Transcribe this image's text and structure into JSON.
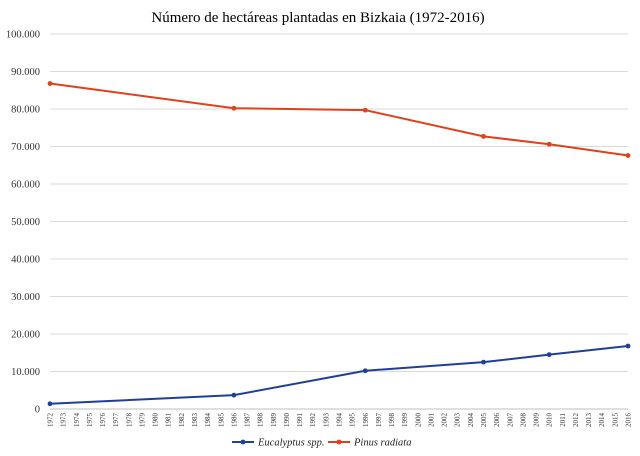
{
  "chart_data": {
    "type": "line",
    "title": "Número de hectáreas plantadas en Bizkaia (1972-2016)",
    "xlabel": "",
    "ylabel": "",
    "ylim": [
      0,
      100000
    ],
    "yticks": [
      0,
      10000,
      20000,
      30000,
      40000,
      50000,
      60000,
      70000,
      80000,
      90000,
      100000
    ],
    "ytick_labels": [
      "0",
      "10.000",
      "20.000",
      "30.000",
      "40.000",
      "50.000",
      "60.000",
      "70.000",
      "80.000",
      "90.000",
      "100.000"
    ],
    "categories": [
      "1972",
      "1973",
      "1974",
      "1975",
      "1976",
      "1977",
      "1978",
      "1979",
      "1980",
      "1981",
      "1982",
      "1983",
      "1984",
      "1985",
      "1986",
      "1987",
      "1988",
      "1989",
      "1990",
      "1991",
      "1992",
      "1993",
      "1994",
      "1995",
      "1996",
      "1997",
      "1998",
      "1999",
      "2000",
      "2001",
      "2002",
      "2003",
      "2004",
      "2005",
      "2006",
      "2007",
      "2008",
      "2009",
      "2010",
      "2011",
      "2012",
      "2013",
      "2014",
      "2015",
      "2016"
    ],
    "grid": true,
    "legend_position": "bottom",
    "series": [
      {
        "name": "Eucalyptus spp.",
        "color": "#1f3f99",
        "points": [
          {
            "x": "1972",
            "y": 1400
          },
          {
            "x": "1986",
            "y": 3700
          },
          {
            "x": "1996",
            "y": 10200
          },
          {
            "x": "2005",
            "y": 12500
          },
          {
            "x": "2010",
            "y": 14500
          },
          {
            "x": "2016",
            "y": 16800
          }
        ]
      },
      {
        "name": "Pinus radiata",
        "color": "#e0401a",
        "points": [
          {
            "x": "1972",
            "y": 86800
          },
          {
            "x": "1986",
            "y": 80200
          },
          {
            "x": "1996",
            "y": 79700
          },
          {
            "x": "2005",
            "y": 72700
          },
          {
            "x": "2010",
            "y": 70600
          },
          {
            "x": "2016",
            "y": 67600
          }
        ]
      }
    ]
  }
}
